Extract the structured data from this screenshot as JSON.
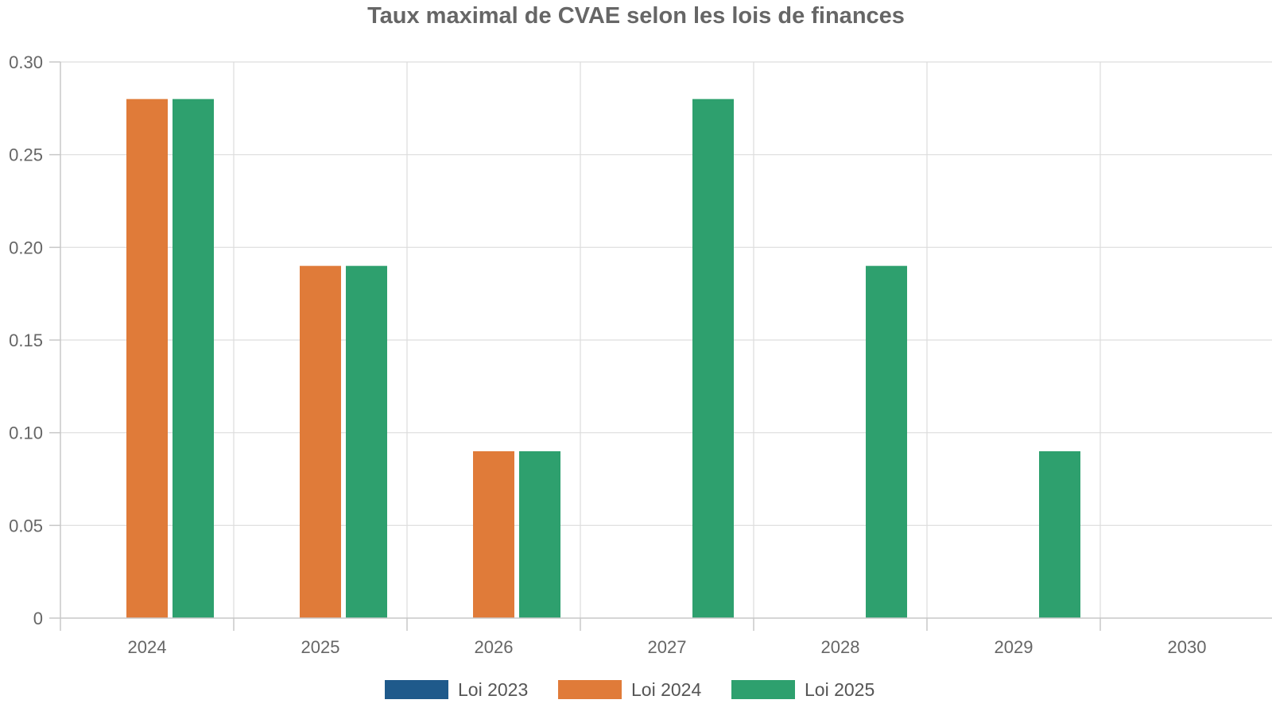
{
  "chart_data": {
    "type": "bar",
    "title": "Taux maximal de CVAE selon les lois de finances",
    "xlabel": "",
    "ylabel": "",
    "categories": [
      "2024",
      "2025",
      "2026",
      "2027",
      "2028",
      "2029",
      "2030"
    ],
    "ylim": [
      0,
      0.3
    ],
    "yticks": [
      "0",
      "0.05",
      "0.10",
      "0.15",
      "0.20",
      "0.25",
      "0.30"
    ],
    "ytick_values": [
      0,
      0.05,
      0.1,
      0.15,
      0.2,
      0.25,
      0.3
    ],
    "grid": true,
    "legend_position": "bottom-center",
    "series": [
      {
        "name": "Loi 2023",
        "color": "#1f5a8b",
        "values": [
          null,
          null,
          null,
          null,
          null,
          null,
          null
        ]
      },
      {
        "name": "Loi 2024",
        "color": "#e07b39",
        "values": [
          0.28,
          0.19,
          0.09,
          null,
          null,
          null,
          null
        ]
      },
      {
        "name": "Loi 2025",
        "color": "#2ea06e",
        "values": [
          0.28,
          0.19,
          0.09,
          0.28,
          0.19,
          0.09,
          null
        ]
      }
    ]
  }
}
